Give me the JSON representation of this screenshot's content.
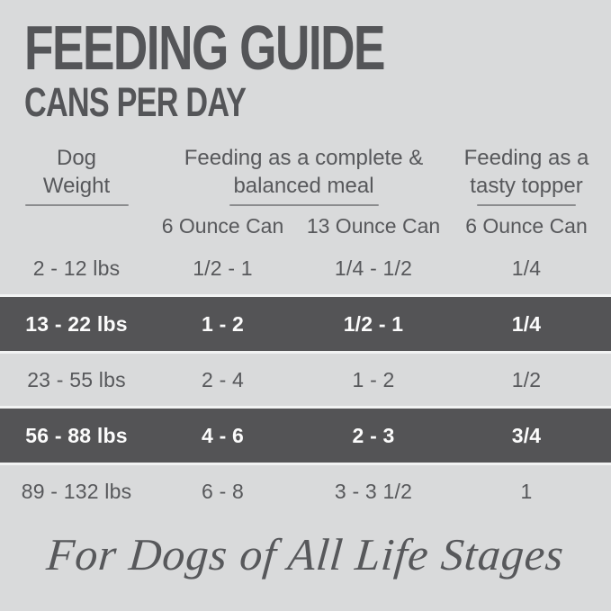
{
  "header": {
    "title": "FEEDING GUIDE",
    "subtitle": "CANS PER DAY"
  },
  "table": {
    "col_weight_header": {
      "line1": "Dog",
      "line2": "Weight"
    },
    "col_complete_header": {
      "line1": "Feeding as a complete &",
      "line2": "balanced meal"
    },
    "col_topper_header": {
      "line1": "Feeding as a",
      "line2": "tasty topper"
    },
    "subheaders": [
      "6 Ounce Can",
      "13 Ounce Can",
      "6 Ounce Can"
    ],
    "rows": [
      {
        "weight": "2 - 12 lbs",
        "complete_6oz": "1/2 - 1",
        "complete_13oz": "1/4 - 1/2",
        "topper_6oz": "1/4",
        "highlighted": false
      },
      {
        "weight": "13 - 22 lbs",
        "complete_6oz": "1 - 2",
        "complete_13oz": "1/2 - 1",
        "topper_6oz": "1/4",
        "highlighted": true
      },
      {
        "weight": "23 - 55 lbs",
        "complete_6oz": "2 - 4",
        "complete_13oz": "1 - 2",
        "topper_6oz": "1/2",
        "highlighted": false
      },
      {
        "weight": "56 - 88 lbs",
        "complete_6oz": "4 - 6",
        "complete_13oz": "2 - 3",
        "topper_6oz": "3/4",
        "highlighted": true
      },
      {
        "weight": "89 - 132 lbs",
        "complete_6oz": "6 - 8",
        "complete_13oz": "3 - 3 1/2",
        "topper_6oz": "1",
        "highlighted": false
      }
    ]
  },
  "footer": {
    "tagline": "For Dogs of All Life Stages"
  },
  "colors": {
    "background": "#d9dadb",
    "highlight_row": "#545456",
    "text": "#57585b",
    "highlight_text": "#fcfcfc",
    "underline": "#8b8c8e"
  }
}
